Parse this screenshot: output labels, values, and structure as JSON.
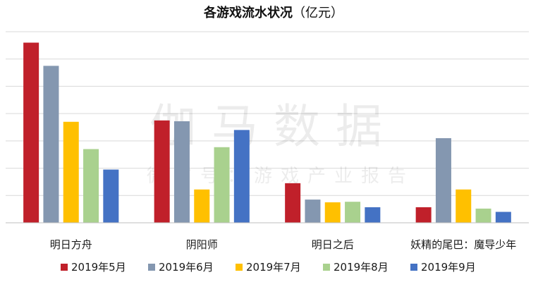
{
  "chart_data": {
    "type": "bar",
    "title": "各游戏流水状况",
    "title_unit": "（亿元）",
    "categories": [
      "明日方舟",
      "阴阳师",
      "明日之后",
      "妖精的尾巴：魔导少年"
    ],
    "series": [
      {
        "name": "2019年5月",
        "color": "#c0202a",
        "values": [
          6.6,
          3.75,
          1.45,
          0.57
        ]
      },
      {
        "name": "2019年6月",
        "color": "#8497b0",
        "values": [
          5.75,
          3.72,
          0.85,
          3.1
        ]
      },
      {
        "name": "2019年7月",
        "color": "#ffc000",
        "values": [
          3.7,
          1.22,
          0.75,
          1.22
        ]
      },
      {
        "name": "2019年8月",
        "color": "#a9d18e",
        "values": [
          2.7,
          2.77,
          0.77,
          0.52
        ]
      },
      {
        "name": "2019年9月",
        "color": "#4472c4",
        "values": [
          1.95,
          3.4,
          0.57,
          0.4
        ]
      }
    ],
    "ylim": [
      0,
      7
    ],
    "grid": true,
    "legend_position": "bottom",
    "watermark": [
      "伽马数据",
      "微信号：游戏产业报告"
    ]
  }
}
